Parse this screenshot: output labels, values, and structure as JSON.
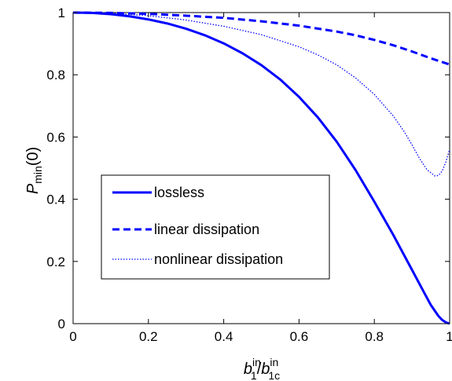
{
  "chart_data": {
    "type": "line",
    "title": "",
    "xlabel": {
      "base1": "b",
      "sub1": "1",
      "sup1": "in",
      "slash": "/",
      "base2": "b",
      "sub2": "1c",
      "sup2": "in"
    },
    "ylabel": {
      "base": "P",
      "sub": "min",
      "arg": "(0)"
    },
    "xlim": [
      0,
      1
    ],
    "ylim": [
      0,
      1
    ],
    "xticks": [
      0,
      0.2,
      0.4,
      0.6,
      0.8,
      1
    ],
    "yticks": [
      0,
      0.2,
      0.4,
      0.6,
      0.8,
      1
    ],
    "xtick_labels": [
      "0",
      "0.2",
      "0.4",
      "0.6",
      "0.8",
      "1"
    ],
    "ytick_labels": [
      "0",
      "0.2",
      "0.4",
      "0.6",
      "0.8",
      "1"
    ],
    "grid": false,
    "legend_position": "lower-left",
    "series": [
      {
        "name": "lossless",
        "style": "solid",
        "color": "#0000ff",
        "x": [
          0,
          0.05,
          0.1,
          0.15,
          0.2,
          0.25,
          0.3,
          0.35,
          0.4,
          0.45,
          0.5,
          0.55,
          0.6,
          0.65,
          0.7,
          0.75,
          0.8,
          0.85,
          0.9,
          0.93,
          0.95,
          0.97,
          0.98,
          0.99,
          1.0
        ],
        "y": [
          1.0,
          0.999,
          0.995,
          0.988,
          0.978,
          0.965,
          0.948,
          0.927,
          0.901,
          0.869,
          0.831,
          0.785,
          0.729,
          0.663,
          0.585,
          0.494,
          0.392,
          0.286,
          0.173,
          0.105,
          0.06,
          0.025,
          0.012,
          0.004,
          0.0
        ]
      },
      {
        "name": "linear dissipation",
        "style": "dashed",
        "color": "#0000ff",
        "x": [
          0,
          0.1,
          0.2,
          0.3,
          0.4,
          0.5,
          0.6,
          0.7,
          0.75,
          0.8,
          0.85,
          0.9,
          0.95,
          1.0
        ],
        "y": [
          1.0,
          0.999,
          0.996,
          0.99,
          0.983,
          0.972,
          0.958,
          0.939,
          0.927,
          0.912,
          0.895,
          0.875,
          0.853,
          0.833
        ]
      },
      {
        "name": "nonlinear dissipation",
        "style": "dotted",
        "color": "#0000ff",
        "x": [
          0,
          0.1,
          0.2,
          0.3,
          0.4,
          0.5,
          0.6,
          0.65,
          0.7,
          0.75,
          0.8,
          0.85,
          0.88,
          0.9,
          0.92,
          0.94,
          0.96,
          0.97,
          0.98,
          0.99,
          1.0
        ],
        "y": [
          1.0,
          0.998,
          0.99,
          0.976,
          0.956,
          0.929,
          0.89,
          0.864,
          0.832,
          0.79,
          0.737,
          0.668,
          0.616,
          0.575,
          0.531,
          0.495,
          0.475,
          0.476,
          0.49,
          0.52,
          0.56
        ]
      }
    ]
  }
}
